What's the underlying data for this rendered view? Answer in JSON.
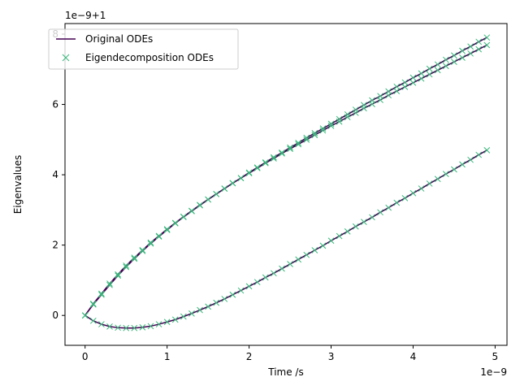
{
  "chart_data": {
    "type": "line",
    "xlabel": "Time /s",
    "ylabel": "Eigenvalues",
    "x_offset_text": "1e−9",
    "y_offset_text": "1e−9+1",
    "xlim": [
      -0.245,
      5.145
    ],
    "ylim": [
      -0.85,
      8.3
    ],
    "xticks": [
      0,
      1,
      2,
      3,
      4,
      5
    ],
    "yticks": [
      0,
      2,
      4,
      6,
      8
    ],
    "grid": false,
    "legend_position": "upper-left",
    "colors": {
      "original": "#440154",
      "eigen": "#35b779"
    },
    "x": [
      0,
      0.1,
      0.2,
      0.3,
      0.4,
      0.5,
      0.6,
      0.7,
      0.8,
      0.9,
      1.0,
      1.1,
      1.2,
      1.3,
      1.4,
      1.5,
      1.6,
      1.7,
      1.8,
      1.9,
      2.0,
      2.1,
      2.2,
      2.3,
      2.4,
      2.5,
      2.6,
      2.7,
      2.8,
      2.9,
      3.0,
      3.1,
      3.2,
      3.3,
      3.4,
      3.5,
      3.6,
      3.7,
      3.8,
      3.9,
      4.0,
      4.1,
      4.2,
      4.3,
      4.4,
      4.5,
      4.6,
      4.7,
      4.8,
      4.9
    ],
    "series": [
      {
        "name": "Original ODEs",
        "style": "line",
        "values_by_curve": [
          [
            0,
            0.28,
            0.52,
            0.76,
            0.98,
            1.19,
            1.38,
            1.56,
            1.74,
            1.9,
            2.06,
            2.21,
            2.36,
            2.5,
            2.64,
            2.77,
            2.9,
            3.03,
            3.16,
            3.28,
            3.4,
            3.52,
            3.64,
            3.75,
            3.87,
            3.98,
            4.09,
            4.2,
            4.31,
            4.42,
            4.53,
            4.63,
            4.74,
            4.84,
            4.95,
            5.05,
            5.15,
            5.26,
            5.36,
            5.46,
            5.56,
            5.66,
            5.76,
            5.86,
            5.96,
            6.06,
            6.16,
            6.26,
            6.36,
            6.46
          ],
          [
            0,
            0.28,
            0.53,
            0.78,
            1.02,
            1.24,
            1.45,
            1.65,
            1.84,
            2.02,
            2.19,
            2.36,
            2.52,
            2.67,
            2.82,
            2.97,
            3.11,
            3.25,
            3.39,
            3.52,
            3.66,
            3.79,
            3.92,
            4.05,
            4.17,
            4.3,
            4.42,
            4.55,
            4.67,
            4.79,
            4.91,
            5.03,
            5.15,
            5.27,
            5.39,
            5.51,
            5.62,
            5.74,
            5.86,
            5.97,
            6.09,
            6.2,
            6.32,
            6.43,
            6.55,
            6.66,
            6.78,
            6.89,
            7.01,
            7.12
          ],
          [
            0,
            -0.14,
            -0.23,
            -0.29,
            -0.32,
            -0.33,
            -0.33,
            -0.31,
            -0.28,
            -0.23,
            -0.17,
            -0.11,
            -0.03,
            0.05,
            0.14,
            0.23,
            0.33,
            0.43,
            0.54,
            0.65,
            0.76,
            0.87,
            0.99,
            1.1,
            1.22,
            1.34,
            1.46,
            1.58,
            1.7,
            1.82,
            1.95,
            2.07,
            2.19,
            2.32,
            2.44,
            2.56,
            2.69,
            2.81,
            2.94,
            3.06,
            3.19,
            3.31,
            3.44,
            3.56,
            3.69,
            3.81,
            3.94,
            4.06,
            4.19,
            4.31
          ]
        ]
      },
      {
        "name": "Eigendecomposition ODEs",
        "style": "x-markers",
        "values_by_curve": "same as Original ODEs"
      }
    ],
    "curve_scale": [
      1.19,
      1.11,
      1.09
    ]
  }
}
